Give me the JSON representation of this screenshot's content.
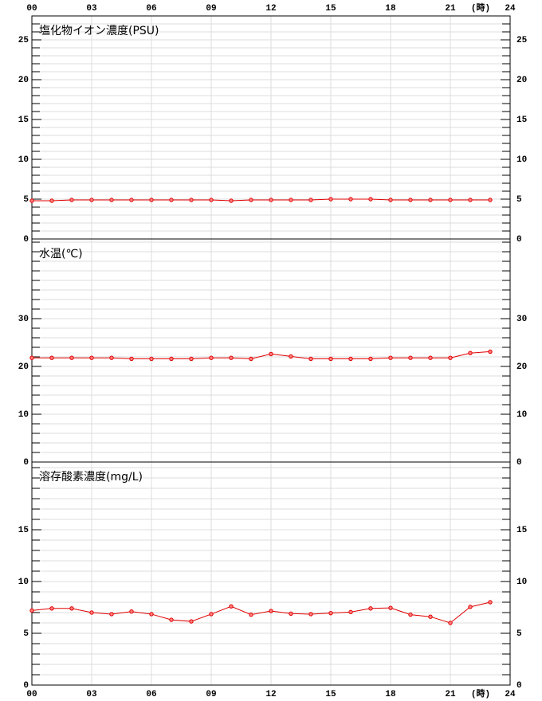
{
  "x_axis": {
    "xlim": [
      0,
      24
    ],
    "xticks": [
      {
        "value": 0,
        "label": "00"
      },
      {
        "value": 3,
        "label": "03"
      },
      {
        "value": 6,
        "label": "06"
      },
      {
        "value": 9,
        "label": "09"
      },
      12,
      15,
      18,
      21,
      24
    ],
    "unit": "(時)"
  },
  "chart_data": [
    {
      "type": "line",
      "title": "塩化物イオン濃度(PSU)",
      "ylim": [
        0,
        28
      ],
      "yticks": [
        0,
        5,
        10,
        15,
        20,
        25
      ],
      "minor_tick_step": 1,
      "grid": true,
      "x": [
        0,
        1,
        2,
        3,
        4,
        5,
        6,
        7,
        8,
        9,
        10,
        11,
        12,
        13,
        14,
        15,
        16,
        17,
        18,
        19,
        20,
        21,
        22,
        23
      ],
      "series": [
        {
          "color": "#e00000",
          "values": [
            4.8,
            4.8,
            4.9,
            4.9,
            4.9,
            4.9,
            4.9,
            4.9,
            4.9,
            4.9,
            4.8,
            4.9,
            4.9,
            4.9,
            4.9,
            5.0,
            5.0,
            5.0,
            4.9,
            4.9,
            4.9,
            4.9,
            4.9,
            4.9
          ]
        }
      ]
    },
    {
      "type": "line",
      "title": "水温(℃)",
      "ylim": [
        0,
        46.67
      ],
      "yticks": [
        0,
        10,
        20,
        30
      ],
      "minor_tick_step": 2,
      "grid": true,
      "x": [
        0,
        1,
        2,
        3,
        4,
        5,
        6,
        7,
        8,
        9,
        10,
        11,
        12,
        13,
        14,
        15,
        16,
        17,
        18,
        19,
        20,
        21,
        22,
        23
      ],
      "series": [
        {
          "color": "#e00000",
          "values": [
            21.8,
            21.8,
            21.8,
            21.8,
            21.8,
            21.6,
            21.6,
            21.6,
            21.6,
            21.8,
            21.8,
            21.6,
            22.6,
            22.1,
            21.6,
            21.6,
            21.6,
            21.6,
            21.8,
            21.8,
            21.8,
            21.8,
            22.8,
            23.1
          ]
        }
      ]
    },
    {
      "type": "line",
      "title": "溶存酸素濃度(mg/L)",
      "ylim": [
        0,
        21.54
      ],
      "yticks": [
        0,
        5,
        10,
        15
      ],
      "minor_tick_step": 1,
      "grid": true,
      "x": [
        0,
        1,
        2,
        3,
        4,
        5,
        6,
        7,
        8,
        9,
        10,
        11,
        12,
        13,
        14,
        15,
        16,
        17,
        18,
        19,
        20,
        21,
        22,
        23
      ],
      "series": [
        {
          "color": "#e00000",
          "values": [
            7.2,
            7.4,
            7.4,
            7.0,
            6.85,
            7.1,
            6.85,
            6.3,
            6.15,
            6.85,
            7.6,
            6.8,
            7.15,
            6.9,
            6.85,
            6.95,
            7.05,
            7.4,
            7.45,
            6.8,
            6.6,
            6.0,
            7.55,
            8.0
          ]
        }
      ]
    }
  ]
}
